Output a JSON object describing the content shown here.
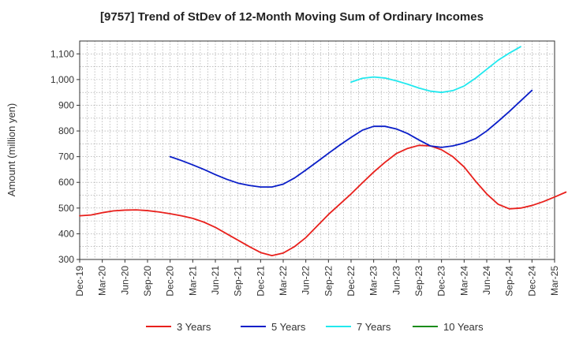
{
  "chart_data": {
    "type": "line",
    "title": "[9757]  Trend of StDev of 12-Month Moving Sum of Ordinary Incomes",
    "xlabel": "",
    "ylabel": "Amount (million yen)",
    "ylim": [
      300,
      1150
    ],
    "yticks": [
      300,
      400,
      500,
      600,
      700,
      800,
      900,
      1000,
      1100
    ],
    "ytick_labels": [
      "300",
      "400",
      "500",
      "600",
      "700",
      "800",
      "900",
      "1,000",
      "1,100"
    ],
    "grid": true,
    "legend_position": "bottom",
    "x_tick_labels": [
      "Dec-19",
      "Mar-20",
      "Jun-20",
      "Sep-20",
      "Dec-20",
      "Mar-21",
      "Jun-21",
      "Sep-21",
      "Dec-21",
      "Mar-22",
      "Jun-22",
      "Sep-22",
      "Dec-22",
      "Mar-23",
      "Jun-23",
      "Sep-23",
      "Dec-23",
      "Mar-24",
      "Jun-24",
      "Sep-24",
      "Dec-24",
      "Mar-25"
    ],
    "series": [
      {
        "name": "3 Years",
        "color": "#e8201c",
        "values": [
          470,
          473,
          482,
          489,
          492,
          493,
          490,
          485,
          478,
          470,
          460,
          445,
          425,
          400,
          375,
          350,
          327,
          315,
          325,
          350,
          385,
          430,
          475,
          515,
          555,
          598,
          640,
          678,
          712,
          732,
          744,
          742,
          727,
          700,
          660,
          605,
          555,
          515,
          497,
          500,
          510,
          525,
          543,
          562
        ]
      },
      {
        "name": "5 Years",
        "color": "#0a1ec8",
        "values": [
          null,
          null,
          null,
          null,
          null,
          null,
          null,
          null,
          700,
          685,
          668,
          650,
          630,
          612,
          597,
          588,
          582,
          582,
          593,
          617,
          648,
          680,
          713,
          745,
          775,
          803,
          818,
          818,
          808,
          790,
          765,
          742,
          736,
          742,
          753,
          770,
          800,
          837,
          876,
          917,
          958
        ]
      },
      {
        "name": "7 Years",
        "color": "#22e8ee",
        "values": [
          null,
          null,
          null,
          null,
          null,
          null,
          null,
          null,
          null,
          null,
          null,
          null,
          null,
          null,
          null,
          null,
          null,
          null,
          null,
          null,
          null,
          null,
          null,
          null,
          990,
          1005,
          1010,
          1006,
          995,
          982,
          967,
          955,
          950,
          957,
          975,
          1005,
          1040,
          1075,
          1103,
          1128
        ]
      },
      {
        "name": "10 Years",
        "color": "#1a8c1a",
        "values": []
      }
    ]
  }
}
